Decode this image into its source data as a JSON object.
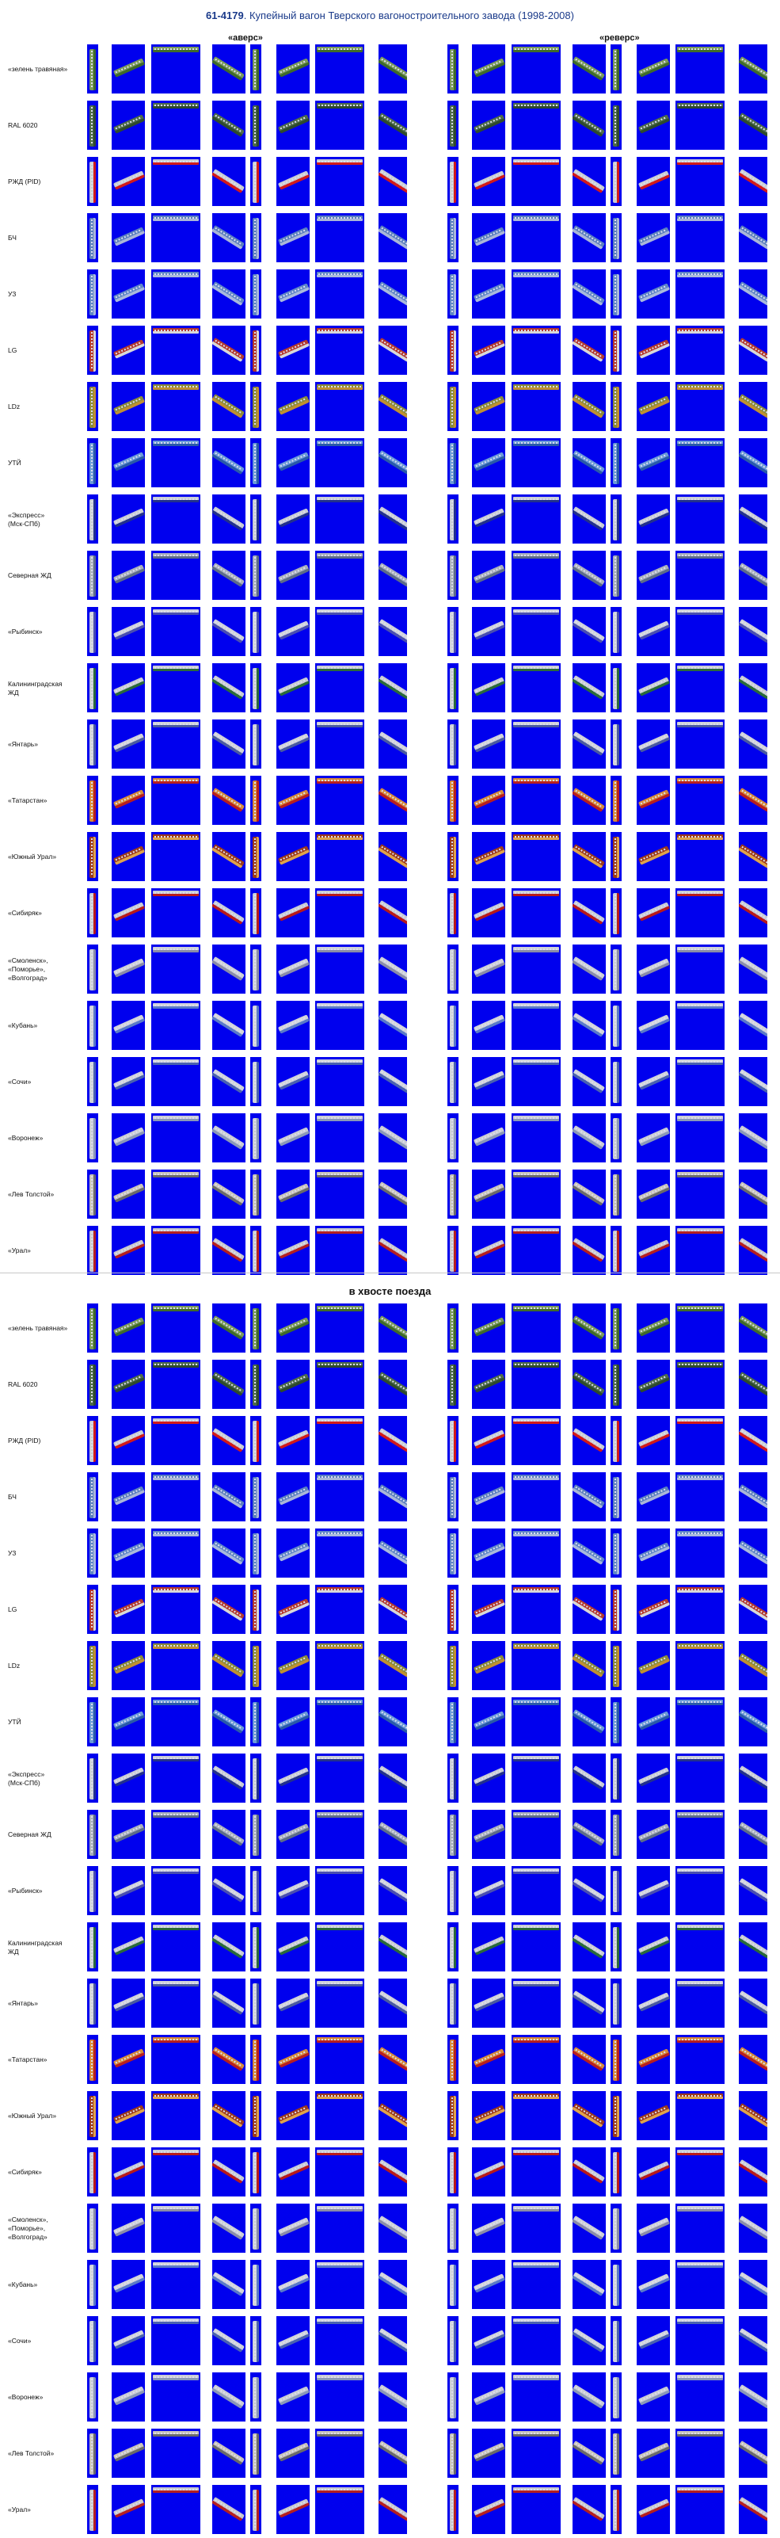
{
  "title": {
    "code": "61-4179",
    "rest": ". Купейный вагон Тверского вагоностроительного завода (1998-2008)"
  },
  "columns": {
    "forward": "«аверс»",
    "reverse": "«реверс»"
  },
  "section2_title": "в хвосте поезда",
  "liveries": [
    {
      "label": "«зелень травяная»",
      "body": "#7a9a5a",
      "stripe": "#3f6a2a"
    },
    {
      "label": "RAL 6020",
      "body": "#4d6b4a",
      "stripe": "#2e4a2c"
    },
    {
      "label": "РЖД (PID)",
      "body": "#c9cdd3",
      "stripe": "#d21a1a"
    },
    {
      "label": "БЧ",
      "body": "#5a7fbf",
      "stripe": "#aab6d8"
    },
    {
      "label": "УЗ",
      "body": "#5f86c7",
      "stripe": "#a9b9dc"
    },
    {
      "label": "LG",
      "body": "#b3392e",
      "stripe": "#d8d8d8"
    },
    {
      "label": "LDz",
      "body": "#8a8a3a",
      "stripe": "#c09030"
    },
    {
      "label": "УТЙ",
      "body": "#6a9ad8",
      "stripe": "#2a5aa8"
    },
    {
      "label": "«Экспресс»\n(Мск-СПб)",
      "body": "#c8ccd4",
      "stripe": "#23318c"
    },
    {
      "label": "Северная ЖД",
      "body": "#a9b0bb",
      "stripe": "#5d6c88"
    },
    {
      "label": "«Рыбинск»",
      "body": "#cfd2da",
      "stripe": "#4a4fb0"
    },
    {
      "label": "Калининградская\nЖД",
      "body": "#c8ccd2",
      "stripe": "#2a6a3a"
    },
    {
      "label": "«Янтарь»",
      "body": "#d0d2d8",
      "stripe": "#4a5aa0"
    },
    {
      "label": "«Татарстан»",
      "body": "#d68a3a",
      "stripe": "#b81f1f"
    },
    {
      "label": "«Южный Урал»",
      "body": "#9b3a1c",
      "stripe": "#e0a34a"
    },
    {
      "label": "«Сибиряк»",
      "body": "#c6cbd6",
      "stripe": "#b81a1a"
    },
    {
      "label": "«Смоленск»,\n«Поморье»,\n«Волгоград»",
      "body": "#cdd0d6",
      "stripe": "#8a8ca8"
    },
    {
      "label": "«Кубань»",
      "body": "#d2d4da",
      "stripe": "#5a7ac8"
    },
    {
      "label": "«Сочи»",
      "body": "#cfd3da",
      "stripe": "#4a62b0"
    },
    {
      "label": "«Воронеж»",
      "body": "#c9ccd3",
      "stripe": "#8a98b8"
    },
    {
      "label": "«Лев Толстой»",
      "body": "#c8c3b8",
      "stripe": "#6a6a6a"
    },
    {
      "label": "«Урал»",
      "body": "#c8c8cc",
      "stripe": "#b52020"
    }
  ],
  "colors": {
    "thumb_bg": "#0000ee",
    "title": "#1a3a8a",
    "divider": "#c8c8c8"
  }
}
